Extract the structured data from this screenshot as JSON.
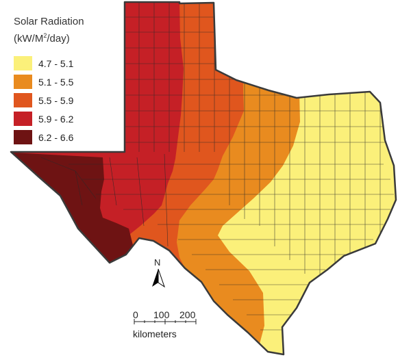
{
  "legend": {
    "title_line1": "Solar Radiation",
    "title_line2_pre": "(kW/M",
    "title_line2_sup": "2",
    "title_line2_post": "/day)",
    "items": [
      {
        "label": "4.7 - 5.1",
        "color": "#fbf07a"
      },
      {
        "label": "5.1 - 5.5",
        "color": "#e98b1f"
      },
      {
        "label": "5.5 - 5.9",
        "color": "#e0561e"
      },
      {
        "label": "5.9 - 6.2",
        "color": "#c52026"
      },
      {
        "label": "6.2 - 6.6",
        "color": "#6e1313"
      }
    ]
  },
  "north_arrow": {
    "label": "N",
    "icon": "north-arrow-icon"
  },
  "scale_bar": {
    "ticks": [
      "0",
      "100",
      "200"
    ],
    "unit": "kilometers"
  },
  "colors": {
    "border": "#3a3a3a",
    "county_lines": "#2a2a2a"
  }
}
